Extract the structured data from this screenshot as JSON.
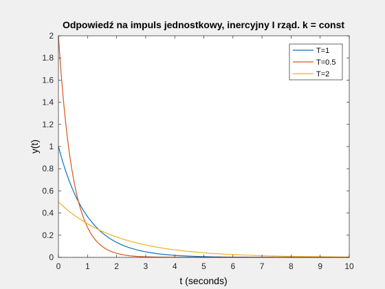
{
  "chart_data": {
    "type": "line",
    "title": "Odpowiedź na impuls jednostkowy, inercyjny I rząd. k = const",
    "xlabel": "t (seconds)",
    "ylabel": "y(t)",
    "xlim": [
      0,
      10
    ],
    "ylim": [
      0,
      2
    ],
    "xticks": [
      "0",
      "1",
      "2",
      "3",
      "4",
      "5",
      "6",
      "7",
      "8",
      "9",
      "10"
    ],
    "yticks": [
      "0",
      "0.2",
      "0.4",
      "0.6",
      "0.8",
      "1",
      "1.2",
      "1.4",
      "1.6",
      "1.8",
      "2"
    ],
    "grid": false,
    "legend_position": "top-right",
    "x": [
      0,
      0.25,
      0.5,
      0.75,
      1,
      1.25,
      1.5,
      1.75,
      2,
      2.5,
      3,
      3.5,
      4,
      4.5,
      5,
      6,
      7,
      8,
      9,
      10
    ],
    "series": [
      {
        "name": "T=1",
        "color": "#0072bd",
        "values": [
          1.0,
          0.779,
          0.607,
          0.472,
          0.368,
          0.287,
          0.223,
          0.174,
          0.135,
          0.082,
          0.05,
          0.03,
          0.018,
          0.011,
          0.007,
          0.002,
          0.001,
          0.0,
          0.0,
          0.0
        ]
      },
      {
        "name": "T=0.5",
        "color": "#d95319",
        "values": [
          2.0,
          1.213,
          0.736,
          0.446,
          0.271,
          0.164,
          0.1,
          0.06,
          0.037,
          0.013,
          0.005,
          0.002,
          0.001,
          0.0,
          0.0,
          0.0,
          0.0,
          0.0,
          0.0,
          0.0
        ]
      },
      {
        "name": "T=2",
        "color": "#edb120",
        "values": [
          0.5,
          0.441,
          0.389,
          0.344,
          0.303,
          0.268,
          0.236,
          0.208,
          0.184,
          0.143,
          0.112,
          0.087,
          0.068,
          0.053,
          0.041,
          0.025,
          0.015,
          0.009,
          0.006,
          0.003
        ]
      }
    ]
  }
}
